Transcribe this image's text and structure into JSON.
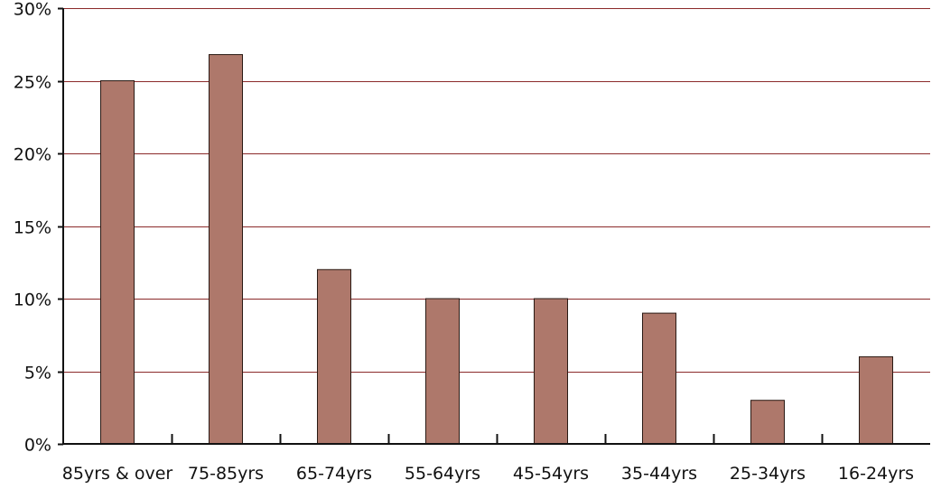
{
  "chart_data": {
    "type": "bar",
    "categories": [
      "85yrs & over",
      "75-85yrs",
      "65-74yrs",
      "55-64yrs",
      "45-54yrs",
      "35-44yrs",
      "25-34yrs",
      "16-24yrs"
    ],
    "values": [
      25,
      26.8,
      12,
      10,
      10,
      9,
      3,
      6
    ],
    "y_ticks": [
      "0%",
      "5%",
      "10%",
      "15%",
      "20%",
      "25%",
      "30%"
    ],
    "ylim": [
      0,
      30
    ],
    "grid": true,
    "title": "",
    "xlabel": "",
    "ylabel": "",
    "colors": {
      "bar": "#ae786b",
      "bar_edge": "#2a1a14",
      "grid": "#8b2a2a",
      "axis": "#111111"
    }
  }
}
